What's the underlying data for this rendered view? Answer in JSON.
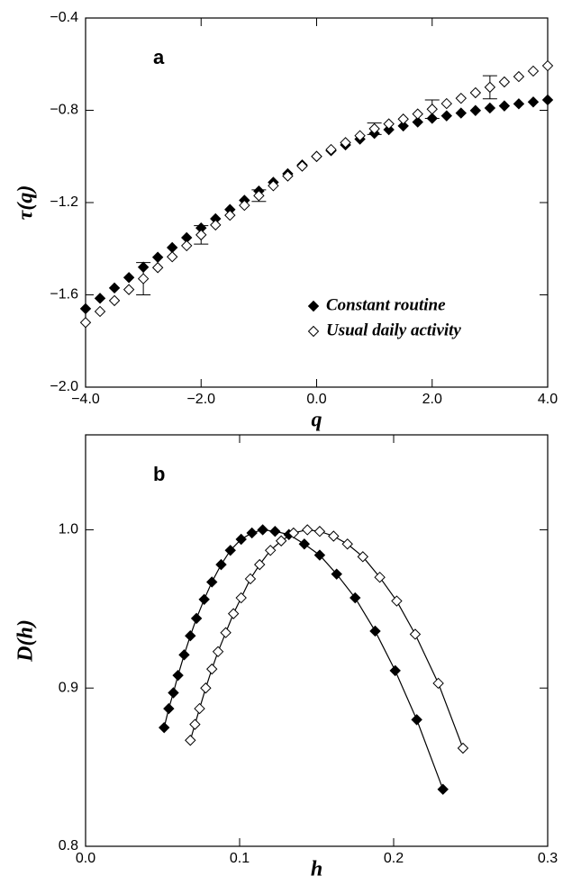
{
  "chart_data": [
    {
      "type": "scatter",
      "annotation": "a",
      "x_label": "q",
      "y_label": "τ(q)",
      "x": [
        -4,
        -3.75,
        -3.5,
        -3.25,
        -3,
        -2.75,
        -2.5,
        -2.25,
        -2,
        -1.75,
        -1.5,
        -1.25,
        -1,
        -0.75,
        -0.5,
        -0.25,
        0,
        0.25,
        0.5,
        0.75,
        1,
        1.25,
        1.5,
        1.75,
        2,
        2.25,
        2.5,
        2.75,
        3,
        3.25,
        3.5,
        3.75,
        4
      ],
      "series": [
        {
          "name": "Constant routine",
          "color": "#000000",
          "marker_fill": "#000000",
          "values": [
            -1.66,
            -1.615,
            -1.57,
            -1.525,
            -1.48,
            -1.437,
            -1.395,
            -1.352,
            -1.31,
            -1.27,
            -1.23,
            -1.19,
            -1.15,
            -1.112,
            -1.075,
            -1.037,
            -1.0,
            -0.975,
            -0.95,
            -0.925,
            -0.9,
            -0.884,
            -0.868,
            -0.851,
            -0.835,
            -0.824,
            -0.812,
            -0.801,
            -0.79,
            -0.781,
            -0.772,
            -0.764,
            -0.755
          ]
        },
        {
          "name": "Usual daily activity",
          "color": "#000000",
          "marker_fill": "#ffffff",
          "values": [
            -1.72,
            -1.672,
            -1.625,
            -1.577,
            -1.53,
            -1.482,
            -1.435,
            -1.387,
            -1.34,
            -1.297,
            -1.255,
            -1.212,
            -1.17,
            -1.127,
            -1.085,
            -1.042,
            -1.0,
            -0.97,
            -0.94,
            -0.91,
            -0.88,
            -0.859,
            -0.838,
            -0.816,
            -0.795,
            -0.771,
            -0.748,
            -0.724,
            -0.7,
            -0.677,
            -0.654,
            -0.63,
            -0.607
          ],
          "errors": [
            null,
            null,
            null,
            null,
            0.07,
            null,
            null,
            null,
            0.04,
            null,
            null,
            null,
            0.025,
            null,
            null,
            null,
            null,
            null,
            null,
            null,
            0.025,
            null,
            null,
            null,
            0.04,
            null,
            null,
            null,
            0.05,
            null,
            null,
            null,
            null
          ]
        }
      ],
      "xlim": [
        -4,
        4
      ],
      "ylim": [
        -2,
        -0.4
      ],
      "xticks": [
        {
          "value": -4,
          "label": "−4.0"
        },
        {
          "value": -2,
          "label": "−2.0"
        },
        {
          "value": 0,
          "label": "0.0"
        },
        {
          "value": 2,
          "label": "2.0"
        },
        {
          "value": 4,
          "label": "4.0"
        }
      ],
      "yticks": [
        {
          "value": -2,
          "label": "−2.0"
        },
        {
          "value": -1.6,
          "label": "−1.6"
        },
        {
          "value": -1.2,
          "label": "−1.2"
        },
        {
          "value": -0.8,
          "label": "−0.8"
        },
        {
          "value": -0.4,
          "label": "−0.4"
        }
      ],
      "legend": "lower right"
    },
    {
      "type": "line",
      "annotation": "b",
      "x_label": "h",
      "y_label": "D(h)",
      "series": [
        {
          "color": "#000000",
          "marker_fill": "#000000",
          "x": [
            0.051,
            0.054,
            0.057,
            0.06,
            0.064,
            0.068,
            0.072,
            0.077,
            0.082,
            0.088,
            0.094,
            0.101,
            0.108,
            0.115,
            0.123,
            0.132,
            0.142,
            0.152,
            0.163,
            0.175,
            0.188,
            0.201,
            0.215,
            0.232
          ],
          "values": [
            0.875,
            0.887,
            0.897,
            0.908,
            0.921,
            0.933,
            0.944,
            0.956,
            0.967,
            0.978,
            0.987,
            0.994,
            0.998,
            1.0,
            0.999,
            0.997,
            0.991,
            0.984,
            0.972,
            0.957,
            0.936,
            0.911,
            0.88,
            0.836
          ]
        },
        {
          "color": "#000000",
          "marker_fill": "#ffffff",
          "x": [
            0.068,
            0.071,
            0.074,
            0.078,
            0.082,
            0.086,
            0.091,
            0.096,
            0.101,
            0.107,
            0.113,
            0.12,
            0.127,
            0.135,
            0.144,
            0.152,
            0.161,
            0.17,
            0.18,
            0.191,
            0.202,
            0.214,
            0.229,
            0.245
          ],
          "values": [
            0.867,
            0.877,
            0.887,
            0.9,
            0.912,
            0.923,
            0.935,
            0.947,
            0.957,
            0.969,
            0.978,
            0.987,
            0.993,
            0.998,
            1.0,
            0.999,
            0.996,
            0.991,
            0.983,
            0.97,
            0.955,
            0.934,
            0.903,
            0.862
          ]
        }
      ],
      "xlim": [
        0,
        0.3
      ],
      "ylim": [
        0.8,
        1.06
      ],
      "xticks": [
        {
          "value": 0,
          "label": "0.0"
        },
        0.1,
        0.2,
        0.3
      ],
      "yticks": [
        0.8,
        0.9,
        {
          "value": 1,
          "label": "1.0"
        }
      ]
    }
  ]
}
